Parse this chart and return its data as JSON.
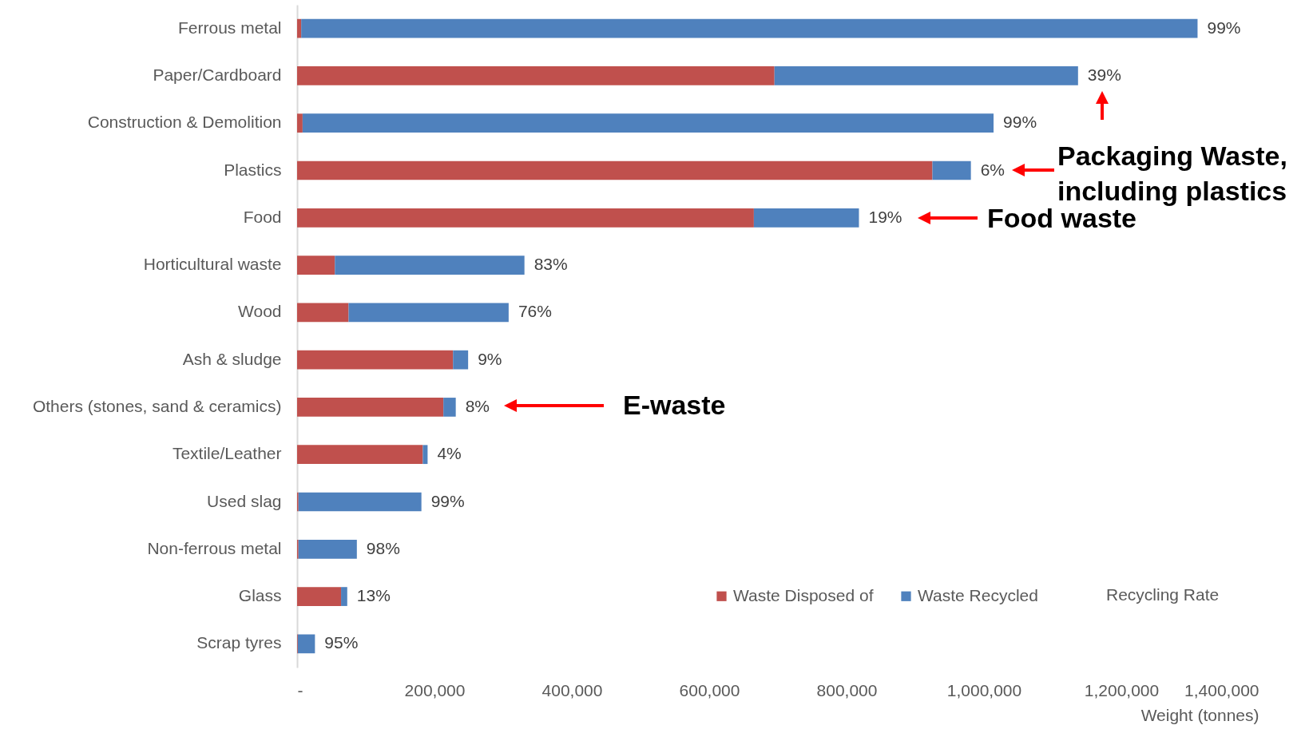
{
  "chart_data": {
    "type": "bar",
    "orientation": "horizontal",
    "stacked": true,
    "categories": [
      "Ferrous metal",
      "Paper/Cardboard",
      "Construction & Demolition",
      "Plastics",
      "Food",
      "Horticultural waste",
      "Wood",
      "Ash & sludge",
      "Others (stones, sand & ceramics)",
      "Textile/Leather",
      "Used slag",
      "Non-ferrous metal",
      "Glass",
      "Scrap tyres"
    ],
    "series": [
      {
        "name": "Waste Disposed of",
        "color": "#c0504d",
        "values": [
          6000,
          695000,
          8000,
          925000,
          665000,
          55000,
          75000,
          227000,
          213000,
          183000,
          2000,
          2000,
          64000,
          1000
        ]
      },
      {
        "name": "Waste Recycled",
        "color": "#4f81bd",
        "values": [
          1305000,
          442000,
          1006000,
          56000,
          153000,
          276000,
          233000,
          22000,
          18000,
          7000,
          179000,
          85000,
          9000,
          25000
        ]
      }
    ],
    "xlim": [
      0,
      1400000
    ],
    "xticks": [
      {
        "value": 0,
        "label": "-"
      },
      {
        "value": 200000,
        "label": "200,000"
      },
      {
        "value": 400000,
        "label": "400,000"
      },
      {
        "value": 600000,
        "label": "600,000"
      },
      {
        "value": 800000,
        "label": "800,000"
      },
      {
        "value": 1000000,
        "label": "1,000,000"
      },
      {
        "value": 1200000,
        "label": "1,200,000"
      },
      {
        "value": 1400000,
        "label": "1,400,000"
      }
    ],
    "xlabel": "Weight (tonnes)",
    "legend": "bottom right",
    "grid": false,
    "annotations": [
      "Packaging Waste,\nincluding plastics",
      "Food waste",
      "E-waste",
      "Recycling Rate",
      {
        "text": "99%",
        "x": 1311000,
        "y": "Ferrous metal"
      },
      {
        "text": "39%",
        "x": 1137000,
        "y": "Paper/Cardboard"
      },
      {
        "text": "99%",
        "x": 1014000,
        "y": "Construction & Demolition"
      },
      {
        "text": "6%",
        "x": 981000,
        "y": "Plastics"
      },
      {
        "text": "19%",
        "x": 818000,
        "y": "Food"
      },
      {
        "text": "83%",
        "x": 331000,
        "y": "Horticultural waste"
      },
      {
        "text": "76%",
        "x": 308000,
        "y": "Wood"
      },
      {
        "text": "9%",
        "x": 249000,
        "y": "Ash & sludge"
      },
      {
        "text": "8%",
        "x": 231000,
        "y": "Others (stones, sand & ceramics)"
      },
      {
        "text": "4%",
        "x": 190000,
        "y": "Textile/Leather"
      },
      {
        "text": "99%",
        "x": 181000,
        "y": "Used slag"
      },
      {
        "text": "98%",
        "x": 87000,
        "y": "Non-ferrous metal"
      },
      {
        "text": "13%",
        "x": 73000,
        "y": "Glass"
      },
      {
        "text": "95%",
        "x": 26000,
        "y": "Scrap tyres"
      }
    ]
  }
}
